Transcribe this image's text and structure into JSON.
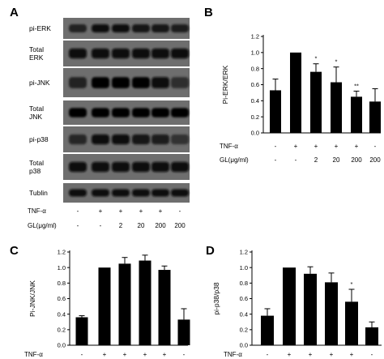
{
  "panel_labels": [
    "A",
    "B",
    "C",
    "D"
  ],
  "blot": {
    "rows": [
      {
        "label": "pi-ERK",
        "bands": [
          0.55,
          0.85,
          0.8,
          0.75,
          0.65,
          0.6
        ]
      },
      {
        "label": "Total\nERK",
        "bands": [
          0.9,
          0.9,
          0.9,
          0.9,
          0.9,
          0.9
        ]
      },
      {
        "label": "pi-JNK",
        "bands": [
          0.5,
          0.95,
          0.95,
          0.95,
          0.85,
          0.35
        ]
      },
      {
        "label": "Total\nJNK",
        "bands": [
          0.95,
          0.95,
          0.95,
          0.95,
          0.95,
          0.95
        ]
      },
      {
        "label": "pi-p38",
        "bands": [
          0.45,
          0.85,
          0.85,
          0.75,
          0.6,
          0.3
        ]
      },
      {
        "label": "Total\np38",
        "bands": [
          0.9,
          0.9,
          0.9,
          0.9,
          0.9,
          0.9
        ]
      },
      {
        "label": "Tublin",
        "bands": [
          0.85,
          0.85,
          0.85,
          0.85,
          0.85,
          0.85
        ]
      }
    ],
    "tnf_label": "TNF-α",
    "tnf_values": [
      "-",
      "+",
      "+",
      "+",
      "+",
      "-"
    ],
    "gl_label": "GL(μg/ml)",
    "gl_values": [
      "-",
      "-",
      "2",
      "20",
      "200",
      "200"
    ]
  },
  "chart_data": [
    {
      "panel": "B",
      "type": "bar",
      "ylabel": "Pi-ERK/ERK",
      "ylim": [
        0,
        1.2
      ],
      "yticks": [
        "0.0",
        "0.2",
        "0.4",
        "0.6",
        "0.8",
        "1.0",
        "1.2"
      ],
      "values": [
        0.53,
        1.0,
        0.76,
        0.63,
        0.45,
        0.39
      ],
      "errors": [
        0.14,
        0.0,
        0.1,
        0.19,
        0.07,
        0.16
      ],
      "significance": [
        "",
        "",
        "*",
        "*",
        "**",
        ""
      ],
      "conditions": [
        {
          "label": "TNF-α",
          "values": [
            "-",
            "+",
            "+",
            "+",
            "+",
            "-"
          ]
        },
        {
          "label": "GL(μg/ml)",
          "values": [
            "-",
            "-",
            "2",
            "20",
            "200",
            "200"
          ]
        }
      ]
    },
    {
      "panel": "C",
      "type": "bar",
      "ylabel": "Pi-JNK/JNK",
      "ylim": [
        0,
        1.2
      ],
      "yticks": [
        "0.0",
        "0.2",
        "0.4",
        "0.6",
        "0.8",
        "1.0",
        "1.2"
      ],
      "values": [
        0.36,
        1.0,
        1.05,
        1.09,
        0.97,
        0.33
      ],
      "errors": [
        0.02,
        0.0,
        0.08,
        0.07,
        0.05,
        0.14
      ],
      "significance": [
        "",
        "",
        "",
        "",
        "",
        ""
      ],
      "conditions": [
        {
          "label": "TNF-α",
          "values": [
            "-",
            "+",
            "+",
            "+",
            "+",
            "-"
          ]
        }
      ]
    },
    {
      "panel": "D",
      "type": "bar",
      "ylabel": "pi-p38/p38",
      "ylim": [
        0,
        1.2
      ],
      "yticks": [
        "0.0",
        "0.2",
        "0.4",
        "0.6",
        "0.8",
        "1.0",
        "1.2"
      ],
      "values": [
        0.38,
        1.0,
        0.92,
        0.81,
        0.56,
        0.23
      ],
      "errors": [
        0.09,
        0.0,
        0.09,
        0.12,
        0.16,
        0.07
      ],
      "significance": [
        "",
        "",
        "",
        "",
        "*",
        ""
      ],
      "conditions": [
        {
          "label": "TNF-α",
          "values": [
            "-",
            "+",
            "+",
            "+",
            "+",
            "-"
          ]
        }
      ]
    }
  ]
}
